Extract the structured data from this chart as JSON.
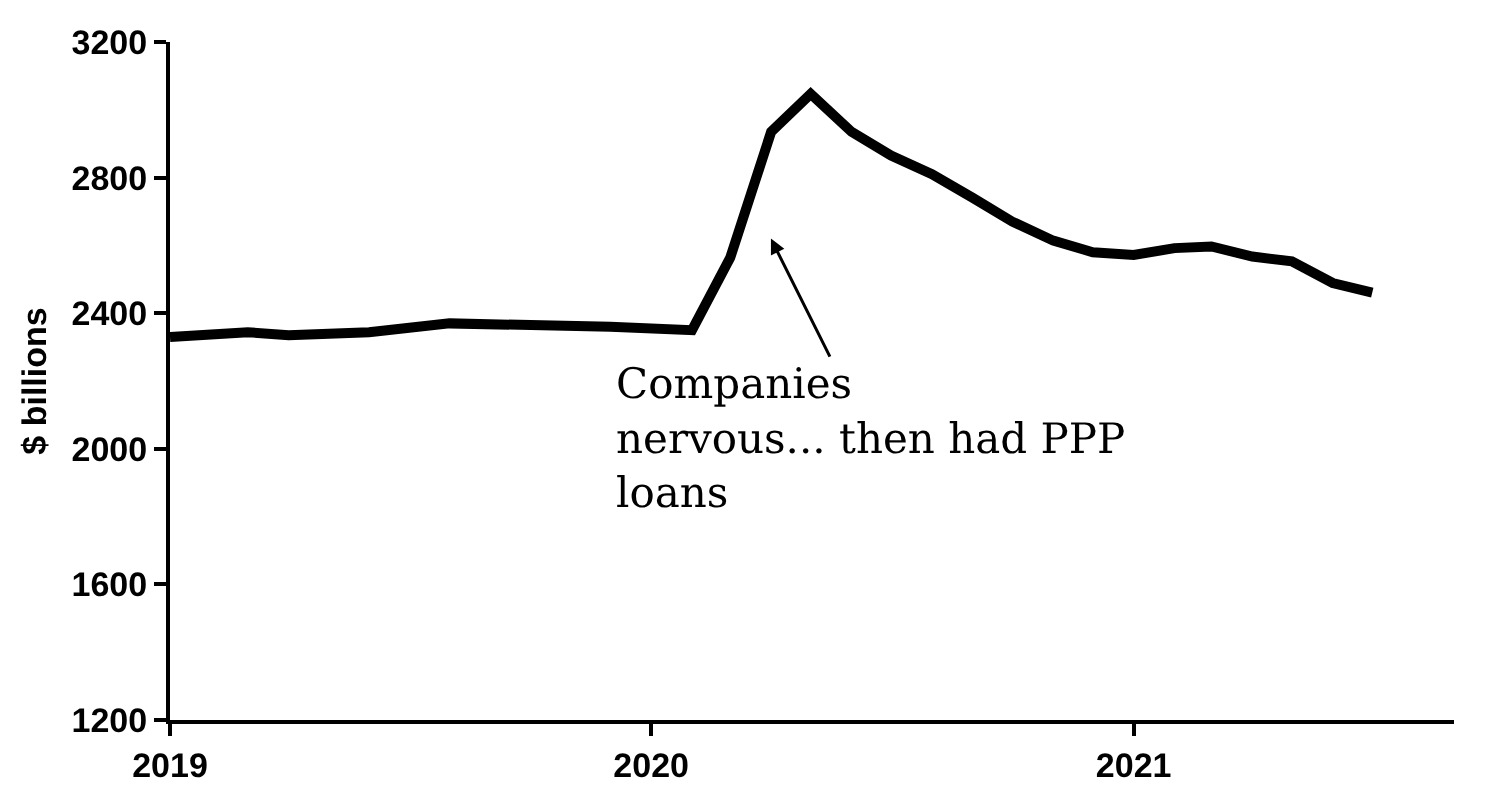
{
  "chart_data": {
    "type": "line",
    "ylabel": "$ billions",
    "x": [
      "2019-01",
      "2019-03",
      "2019-04",
      "2019-06",
      "2019-08",
      "2019-12",
      "2020-02",
      "2020-03",
      "2020-04",
      "2020-05",
      "2020-06",
      "2020-07",
      "2020-08",
      "2020-09",
      "2020-10",
      "2020-11",
      "2020-12",
      "2021-01",
      "2021-02",
      "2021-03",
      "2021-04",
      "2021-05",
      "2021-06",
      "2021-07"
    ],
    "series": [
      {
        "color": "#000000",
        "values": [
          2330,
          2344,
          2335,
          2344,
          2370,
          2360,
          2350,
          2564,
          2935,
          3047,
          2935,
          2865,
          2810,
          2740,
          2670,
          2614,
          2580,
          2572,
          2592,
          2597,
          2567,
          2553,
          2489,
          2461
        ]
      }
    ],
    "xlim": [
      "2019-01-01",
      "2021-09-01"
    ],
    "xticks": [
      {
        "value": "2019-01-01",
        "label": "2019"
      },
      {
        "value": "2020-01-01",
        "label": "2020"
      },
      {
        "value": "2021-01-01",
        "label": "2021"
      }
    ],
    "ylim": [
      1200,
      3200
    ],
    "yticks": [
      1200,
      1600,
      2000,
      2400,
      2800,
      3200
    ],
    "marker": "none",
    "line_style": "solid",
    "annotations": [
      "Companies\nnervous... then had PPP\nloans"
    ]
  }
}
